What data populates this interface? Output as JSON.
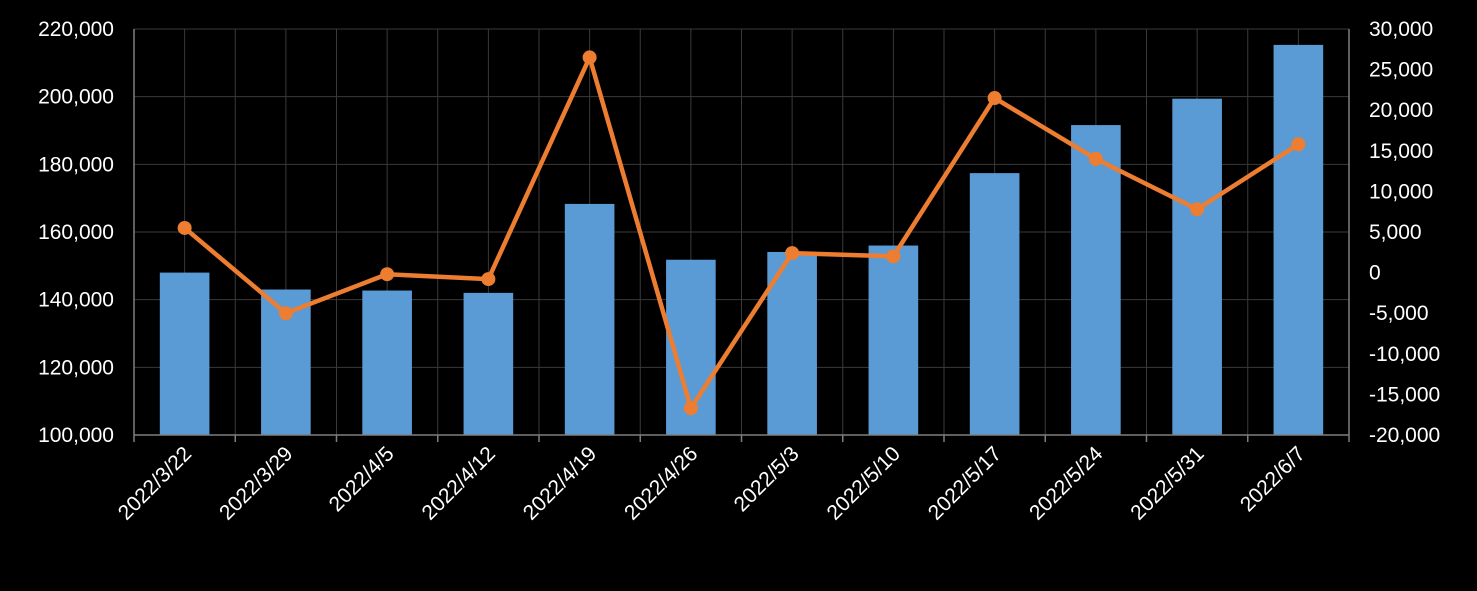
{
  "chart_data": {
    "type": "bar",
    "combo": "bar+line (secondary axis)",
    "categories": [
      "2022/3/22",
      "2022/3/29",
      "2022/4/5",
      "2022/4/12",
      "2022/4/19",
      "2022/4/26",
      "2022/5/3",
      "2022/5/10",
      "2022/5/17",
      "2022/5/24",
      "2022/5/31",
      "2022/6/7"
    ],
    "series": [
      {
        "type": "bar",
        "axis": "left",
        "color": "#5b9bd5",
        "values": [
          148000,
          143000,
          142700,
          142000,
          168300,
          151800,
          154100,
          156000,
          177400,
          191600,
          199400,
          215300
        ]
      },
      {
        "type": "line",
        "axis": "right",
        "color": "#ed7d31",
        "values": [
          5500,
          -5000,
          -200,
          -800,
          26500,
          -16700,
          2400,
          2000,
          21500,
          14000,
          7800,
          15800
        ]
      }
    ],
    "y_left": {
      "min": 100000,
      "max": 220000,
      "step": 20000,
      "tick_labels": [
        "100,000",
        "120,000",
        "140,000",
        "160,000",
        "180,000",
        "200,000",
        "220,000"
      ]
    },
    "y_right": {
      "min": -20000,
      "max": 30000,
      "step": 5000,
      "tick_labels": [
        "-20,000",
        "-15,000",
        "-10,000",
        "-5,000",
        "0",
        "5,000",
        "10,000",
        "15,000",
        "20,000",
        "25,000",
        "30,000"
      ]
    },
    "grid": true,
    "legend": "none",
    "colors": {
      "background": "#000000",
      "grid": "#3a3a3a",
      "axis": "#7f7f7f",
      "text": "#ffffff"
    }
  }
}
